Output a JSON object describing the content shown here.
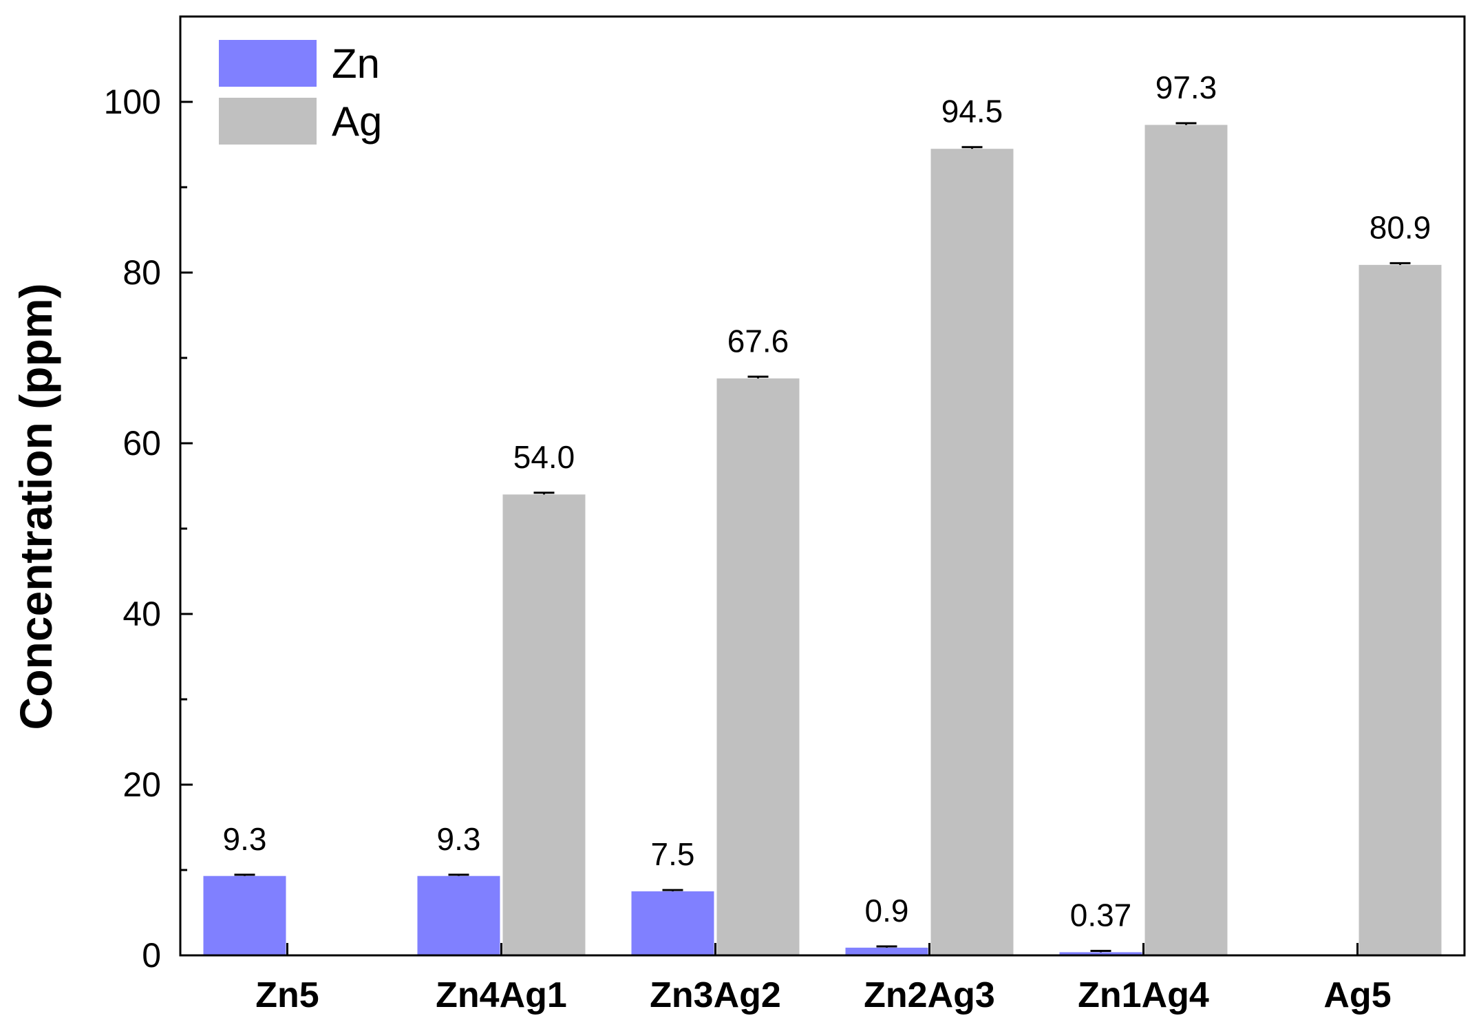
{
  "chart_data": {
    "type": "bar",
    "title": "",
    "xlabel": "",
    "ylabel": "Concentration (ppm)",
    "ylim": [
      0,
      110
    ],
    "yticks": [
      0,
      20,
      40,
      60,
      80,
      100
    ],
    "grid": false,
    "legend_position": "top-left",
    "categories": [
      "Zn5",
      "Zn4Ag1",
      "Zn3Ag2",
      "Zn2Ag3",
      "Zn1Ag4",
      "Ag5"
    ],
    "series": [
      {
        "name": "Zn",
        "color": "#8080ff",
        "values": [
          9.3,
          9.3,
          7.5,
          0.9,
          0.37,
          null
        ],
        "labels": [
          "9.3",
          "9.3",
          "7.5",
          "0.9",
          "0.37",
          null
        ],
        "error": [
          0.15,
          0.15,
          0.15,
          0.15,
          0.15,
          null
        ]
      },
      {
        "name": "Ag",
        "color": "#c0c0c0",
        "values": [
          null,
          54.0,
          67.6,
          94.5,
          97.3,
          80.9
        ],
        "labels": [
          null,
          "54.0",
          "67.6",
          "94.5",
          "97.3",
          "80.9"
        ],
        "error": [
          null,
          0.2,
          0.2,
          0.2,
          0.2,
          0.2
        ]
      }
    ]
  }
}
